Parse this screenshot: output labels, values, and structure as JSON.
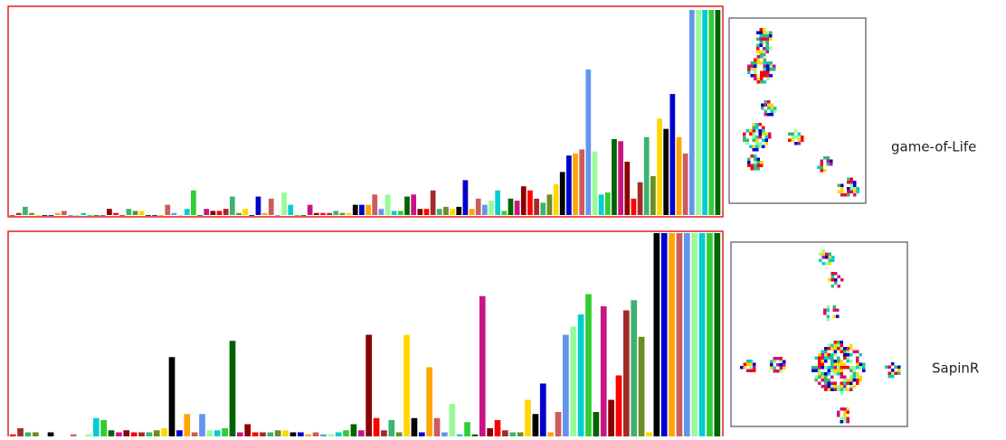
{
  "chart_data": [
    {
      "type": "bar",
      "title": "game-of-Life",
      "ylim": [
        0,
        100
      ],
      "palette": [
        "#ff0000",
        "#a52a2a",
        "#3cb371",
        "#6b8e23",
        "#ffd700",
        "#000000",
        "#0000cd",
        "#ffa500",
        "#cd5c5c",
        "#6495ed",
        "#98fb98",
        "#00ced1",
        "#32cd32",
        "#006400",
        "#c71585",
        "#8b0000"
      ],
      "values": [
        0,
        1,
        4,
        1,
        0,
        0,
        0,
        1,
        2,
        0,
        0,
        1,
        0,
        0,
        0,
        3,
        1,
        0,
        3,
        2,
        2,
        0,
        0,
        0,
        5,
        1,
        0,
        3,
        12,
        0,
        3,
        2,
        2,
        3,
        9,
        1,
        3,
        0,
        9,
        1,
        8,
        0,
        11,
        5,
        0,
        0,
        5,
        1,
        1,
        1,
        2,
        1,
        1,
        5,
        5,
        5,
        10,
        3,
        10,
        2,
        2,
        9,
        10,
        3,
        3,
        12,
        3,
        4,
        3,
        4,
        17,
        3,
        8,
        5,
        7,
        12,
        2,
        8,
        7,
        14,
        12,
        8,
        6,
        10,
        15,
        21,
        29,
        30,
        32,
        71,
        31,
        10,
        11,
        37,
        36,
        26,
        8,
        16,
        38,
        19,
        47,
        42,
        59,
        38,
        30,
        100,
        100,
        100,
        100,
        100
      ]
    },
    {
      "type": "bar",
      "title": "SapinR",
      "ylim": [
        0,
        100
      ],
      "palette": [
        "#ff0000",
        "#a52a2a",
        "#3cb371",
        "#6b8e23",
        "#ffd700",
        "#000000",
        "#0000cd",
        "#ffa500",
        "#cd5c5c",
        "#6495ed",
        "#98fb98",
        "#00ced1",
        "#32cd32",
        "#006400",
        "#c71585",
        "#8b0000"
      ],
      "values": [
        1,
        4,
        2,
        2,
        0,
        2,
        0,
        0,
        1,
        0,
        1,
        9,
        8,
        3,
        2,
        3,
        2,
        2,
        2,
        3,
        4,
        39,
        3,
        11,
        2,
        11,
        3,
        3,
        4,
        47,
        2,
        6,
        2,
        2,
        2,
        3,
        3,
        2,
        2,
        1,
        2,
        1,
        1,
        2,
        3,
        6,
        3,
        50,
        9,
        3,
        8,
        2,
        50,
        9,
        2,
        34,
        9,
        2,
        16,
        1,
        7,
        1,
        69,
        4,
        8,
        3,
        2,
        2,
        18,
        11,
        26,
        2,
        12,
        50,
        54,
        60,
        70,
        12,
        64,
        18,
        30,
        62,
        67,
        49,
        2,
        100,
        100,
        100,
        100,
        100,
        100,
        100,
        100,
        100
      ]
    }
  ]
}
